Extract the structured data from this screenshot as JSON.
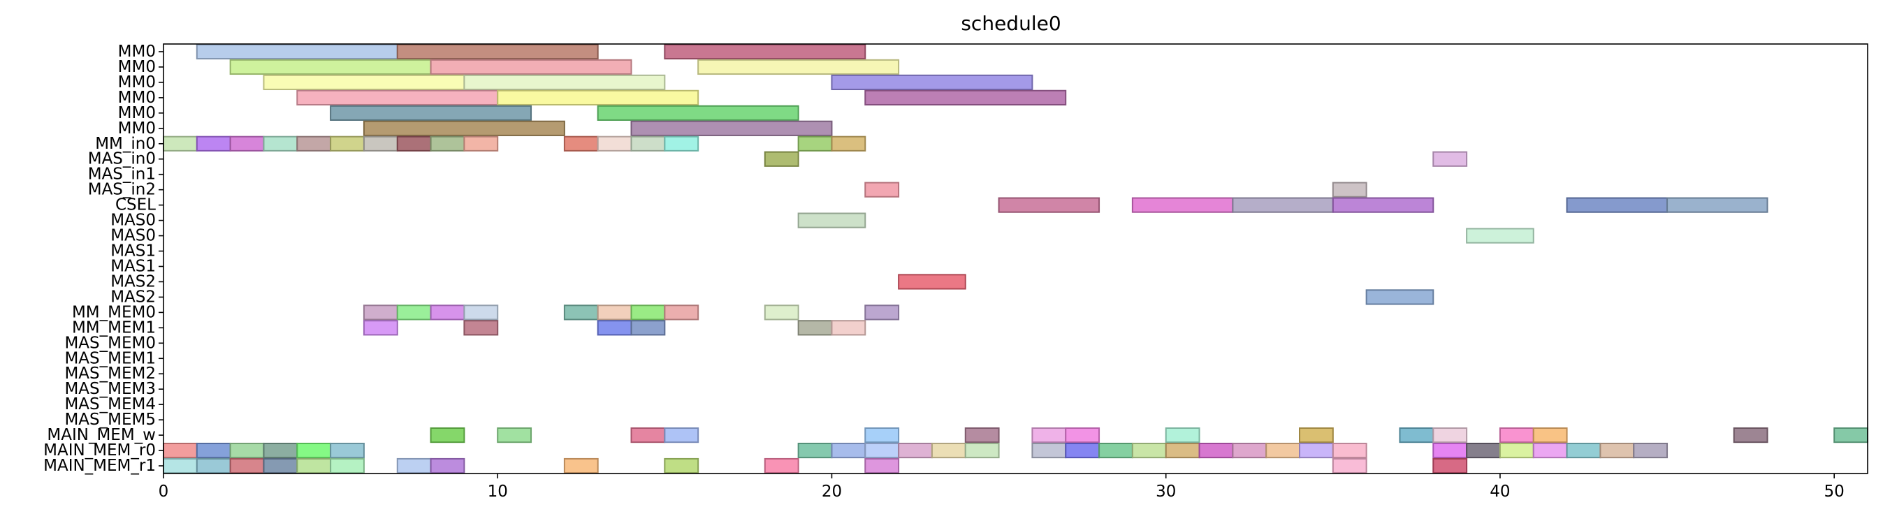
{
  "chart_data": {
    "type": "gantt",
    "title": "schedule0",
    "xlabel": "",
    "ylabel": "",
    "xlim": [
      0,
      51
    ],
    "xticks": [
      0,
      10,
      20,
      30,
      40,
      50
    ],
    "grid": false,
    "rows": [
      "MM0",
      "MM0",
      "MM0",
      "MM0",
      "MM0",
      "MM0",
      "MM_in0",
      "MAS_in0",
      "MAS_in1",
      "MAS_in2",
      "CSEL",
      "MAS0",
      "MAS0",
      "MAS1",
      "MAS1",
      "MAS2",
      "MAS2",
      "MM_MEM0",
      "MM_MEM1",
      "MAS_MEM0",
      "MAS_MEM1",
      "MAS_MEM2",
      "MAS_MEM3",
      "MAS_MEM4",
      "MAS_MEM5",
      "MAIN_MEM_w",
      "MAIN_MEM_r0",
      "MAIN_MEM_r1"
    ],
    "bars": [
      {
        "row": 0,
        "start": 1,
        "end": 7,
        "color": "#aac4e8"
      },
      {
        "row": 0,
        "start": 7,
        "end": 13,
        "color": "#b87a6a"
      },
      {
        "row": 0,
        "start": 15,
        "end": 21,
        "color": "#bf5f7e"
      },
      {
        "row": 1,
        "start": 2,
        "end": 8,
        "color": "#c6f08c"
      },
      {
        "row": 1,
        "start": 8,
        "end": 14,
        "color": "#f0a0a8"
      },
      {
        "row": 1,
        "start": 16,
        "end": 22,
        "color": "#f4f5a8"
      },
      {
        "row": 2,
        "start": 3,
        "end": 9,
        "color": "#f8fca8"
      },
      {
        "row": 2,
        "start": 9,
        "end": 15,
        "color": "#e4f5c4"
      },
      {
        "row": 2,
        "start": 20,
        "end": 26,
        "color": "#9488e4"
      },
      {
        "row": 3,
        "start": 4,
        "end": 10,
        "color": "#f4a4b4"
      },
      {
        "row": 3,
        "start": 10,
        "end": 16,
        "color": "#f8f890"
      },
      {
        "row": 3,
        "start": 21,
        "end": 27,
        "color": "#b068a8"
      },
      {
        "row": 4,
        "start": 5,
        "end": 11,
        "color": "#7098a8"
      },
      {
        "row": 4,
        "start": 13,
        "end": 19,
        "color": "#68d470"
      },
      {
        "row": 5,
        "start": 6,
        "end": 12,
        "color": "#a88a58"
      },
      {
        "row": 5,
        "start": 14,
        "end": 20,
        "color": "#a07ca4"
      },
      {
        "row": 6,
        "start": 0,
        "end": 1,
        "color": "#c4e4b0"
      },
      {
        "row": 6,
        "start": 1,
        "end": 2,
        "color": "#b070f0"
      },
      {
        "row": 6,
        "start": 2,
        "end": 3,
        "color": "#d070d4"
      },
      {
        "row": 6,
        "start": 3,
        "end": 4,
        "color": "#a8e0c8"
      },
      {
        "row": 6,
        "start": 4,
        "end": 5,
        "color": "#b89898"
      },
      {
        "row": 6,
        "start": 5,
        "end": 6,
        "color": "#c8cc78"
      },
      {
        "row": 6,
        "start": 6,
        "end": 7,
        "color": "#c0bcb4"
      },
      {
        "row": 6,
        "start": 7,
        "end": 8,
        "color": "#9c5860"
      },
      {
        "row": 6,
        "start": 8,
        "end": 9,
        "color": "#a0b888"
      },
      {
        "row": 6,
        "start": 9,
        "end": 10,
        "color": "#f0a898"
      },
      {
        "row": 6,
        "start": 12,
        "end": 13,
        "color": "#e07868"
      },
      {
        "row": 6,
        "start": 13,
        "end": 14,
        "color": "#f0d8d0"
      },
      {
        "row": 6,
        "start": 14,
        "end": 15,
        "color": "#c4d8c0"
      },
      {
        "row": 6,
        "start": 15,
        "end": 16,
        "color": "#90f0e0"
      },
      {
        "row": 6,
        "start": 19,
        "end": 20,
        "color": "#98cc68"
      },
      {
        "row": 6,
        "start": 20,
        "end": 21,
        "color": "#d4b468"
      },
      {
        "row": 7,
        "start": 18,
        "end": 19,
        "color": "#a0b058"
      },
      {
        "row": 7,
        "start": 38,
        "end": 39,
        "color": "#dcb0e0"
      },
      {
        "row": 9,
        "start": 21,
        "end": 22,
        "color": "#f098a4"
      },
      {
        "row": 9,
        "start": 35,
        "end": 36,
        "color": "#c4b8bc"
      },
      {
        "row": 10,
        "start": 25,
        "end": 28,
        "color": "#c87098"
      },
      {
        "row": 10,
        "start": 29,
        "end": 32,
        "color": "#e070d0"
      },
      {
        "row": 10,
        "start": 32,
        "end": 35,
        "color": "#a8a0c0"
      },
      {
        "row": 10,
        "start": 35,
        "end": 38,
        "color": "#b070d0"
      },
      {
        "row": 10,
        "start": 42,
        "end": 45,
        "color": "#7088c4"
      },
      {
        "row": 10,
        "start": 45,
        "end": 48,
        "color": "#88a4c4"
      },
      {
        "row": 11,
        "start": 19,
        "end": 21,
        "color": "#c4dcc0"
      },
      {
        "row": 12,
        "start": 39,
        "end": 41,
        "color": "#c4f0d4"
      },
      {
        "row": 15,
        "start": 22,
        "end": 24,
        "color": "#e86070"
      },
      {
        "row": 16,
        "start": 36,
        "end": 38,
        "color": "#88a8d4"
      },
      {
        "row": 17,
        "start": 6,
        "end": 7,
        "color": "#c8a0c4"
      },
      {
        "row": 17,
        "start": 7,
        "end": 8,
        "color": "#88ec88"
      },
      {
        "row": 17,
        "start": 8,
        "end": 9,
        "color": "#d080e8"
      },
      {
        "row": 17,
        "start": 9,
        "end": 10,
        "color": "#c4d4e8"
      },
      {
        "row": 17,
        "start": 12,
        "end": 13,
        "color": "#78b8a8"
      },
      {
        "row": 17,
        "start": 13,
        "end": 14,
        "color": "#f0c8b0"
      },
      {
        "row": 17,
        "start": 14,
        "end": 15,
        "color": "#88e870"
      },
      {
        "row": 17,
        "start": 15,
        "end": 16,
        "color": "#e8a0a0"
      },
      {
        "row": 17,
        "start": 18,
        "end": 19,
        "color": "#d8ecc4"
      },
      {
        "row": 17,
        "start": 21,
        "end": 22,
        "color": "#b098c8"
      },
      {
        "row": 18,
        "start": 6,
        "end": 7,
        "color": "#d088f4"
      },
      {
        "row": 18,
        "start": 9,
        "end": 10,
        "color": "#b87080"
      },
      {
        "row": 18,
        "start": 13,
        "end": 14,
        "color": "#7080ec"
      },
      {
        "row": 18,
        "start": 14,
        "end": 15,
        "color": "#7890c4"
      },
      {
        "row": 18,
        "start": 19,
        "end": 20,
        "color": "#a8ac98"
      },
      {
        "row": 18,
        "start": 20,
        "end": 21,
        "color": "#f0c8c4"
      },
      {
        "row": 25,
        "start": 8,
        "end": 9,
        "color": "#70d050"
      },
      {
        "row": 25,
        "start": 10,
        "end": 11,
        "color": "#90dc90"
      },
      {
        "row": 25,
        "start": 14,
        "end": 15,
        "color": "#e07090"
      },
      {
        "row": 25,
        "start": 15,
        "end": 16,
        "color": "#a0b8f4"
      },
      {
        "row": 25,
        "start": 21,
        "end": 22,
        "color": "#98c8f8"
      },
      {
        "row": 25,
        "start": 24,
        "end": 25,
        "color": "#a87890"
      },
      {
        "row": 25,
        "start": 26,
        "end": 27,
        "color": "#eca4e4"
      },
      {
        "row": 25,
        "start": 27,
        "end": 28,
        "color": "#f080e0"
      },
      {
        "row": 25,
        "start": 30,
        "end": 31,
        "color": "#a4f0d4"
      },
      {
        "row": 25,
        "start": 34,
        "end": 35,
        "color": "#d4b458"
      },
      {
        "row": 25,
        "start": 37,
        "end": 38,
        "color": "#68b0c8"
      },
      {
        "row": 25,
        "start": 38,
        "end": 39,
        "color": "#ecccdc"
      },
      {
        "row": 25,
        "start": 40,
        "end": 41,
        "color": "#f880c8"
      },
      {
        "row": 25,
        "start": 41,
        "end": 42,
        "color": "#f8b870"
      },
      {
        "row": 25,
        "start": 47,
        "end": 48,
        "color": "#8c7080"
      },
      {
        "row": 25,
        "start": 50,
        "end": 51,
        "color": "#70c098"
      },
      {
        "row": 26,
        "start": 0,
        "end": 1,
        "color": "#f08c8c"
      },
      {
        "row": 26,
        "start": 1,
        "end": 2,
        "color": "#7090d4"
      },
      {
        "row": 26,
        "start": 2,
        "end": 3,
        "color": "#98d498"
      },
      {
        "row": 26,
        "start": 3,
        "end": 4,
        "color": "#78a090"
      },
      {
        "row": 26,
        "start": 4,
        "end": 5,
        "color": "#70f870"
      },
      {
        "row": 26,
        "start": 5,
        "end": 6,
        "color": "#88c0d0"
      },
      {
        "row": 26,
        "start": 19,
        "end": 20,
        "color": "#70c0a0"
      },
      {
        "row": 26,
        "start": 20,
        "end": 21,
        "color": "#98b0e8"
      },
      {
        "row": 26,
        "start": 21,
        "end": 22,
        "color": "#b0c8f8"
      },
      {
        "row": 26,
        "start": 22,
        "end": 23,
        "color": "#d8a4cc"
      },
      {
        "row": 26,
        "start": 23,
        "end": 24,
        "color": "#e8d8a8"
      },
      {
        "row": 26,
        "start": 24,
        "end": 25,
        "color": "#c4e4b8"
      },
      {
        "row": 26,
        "start": 26,
        "end": 27,
        "color": "#b8bcd0"
      },
      {
        "row": 26,
        "start": 27,
        "end": 28,
        "color": "#7070f0"
      },
      {
        "row": 26,
        "start": 28,
        "end": 29,
        "color": "#70c890"
      },
      {
        "row": 26,
        "start": 29,
        "end": 30,
        "color": "#c0e098"
      },
      {
        "row": 26,
        "start": 30,
        "end": 31,
        "color": "#d4b070"
      },
      {
        "row": 26,
        "start": 31,
        "end": 32,
        "color": "#d060c8"
      },
      {
        "row": 26,
        "start": 32,
        "end": 33,
        "color": "#d898c4"
      },
      {
        "row": 26,
        "start": 33,
        "end": 34,
        "color": "#f0c090"
      },
      {
        "row": 26,
        "start": 34,
        "end": 35,
        "color": "#c0a8f8"
      },
      {
        "row": 26,
        "start": 35,
        "end": 36,
        "color": "#f8b0c8"
      },
      {
        "row": 26,
        "start": 38,
        "end": 39,
        "color": "#e070f0"
      },
      {
        "row": 26,
        "start": 39,
        "end": 40,
        "color": "#706878"
      },
      {
        "row": 26,
        "start": 40,
        "end": 41,
        "color": "#d4f090"
      },
      {
        "row": 26,
        "start": 41,
        "end": 42,
        "color": "#e898f0"
      },
      {
        "row": 26,
        "start": 42,
        "end": 43,
        "color": "#80c4cc"
      },
      {
        "row": 26,
        "start": 43,
        "end": 44,
        "color": "#d8b8a0"
      },
      {
        "row": 26,
        "start": 44,
        "end": 45,
        "color": "#a8a0b8"
      },
      {
        "row": 27,
        "start": 0,
        "end": 1,
        "color": "#a8e0e0"
      },
      {
        "row": 27,
        "start": 1,
        "end": 2,
        "color": "#88c0d0"
      },
      {
        "row": 27,
        "start": 2,
        "end": 3,
        "color": "#d07078"
      },
      {
        "row": 27,
        "start": 3,
        "end": 4,
        "color": "#7088a4"
      },
      {
        "row": 27,
        "start": 4,
        "end": 5,
        "color": "#b4e090"
      },
      {
        "row": 27,
        "start": 5,
        "end": 6,
        "color": "#a8f0b8"
      },
      {
        "row": 27,
        "start": 7,
        "end": 8,
        "color": "#b0c8f0"
      },
      {
        "row": 27,
        "start": 8,
        "end": 9,
        "color": "#b078d8"
      },
      {
        "row": 27,
        "start": 12,
        "end": 13,
        "color": "#f8b878"
      },
      {
        "row": 27,
        "start": 15,
        "end": 16,
        "color": "#b4d870"
      },
      {
        "row": 27,
        "start": 18,
        "end": 19,
        "color": "#f880a8"
      },
      {
        "row": 27,
        "start": 21,
        "end": 22,
        "color": "#d884d8"
      },
      {
        "row": 27,
        "start": 35,
        "end": 36,
        "color": "#f8b0d0"
      },
      {
        "row": 27,
        "start": 38,
        "end": 39,
        "color": "#d05070"
      }
    ]
  }
}
